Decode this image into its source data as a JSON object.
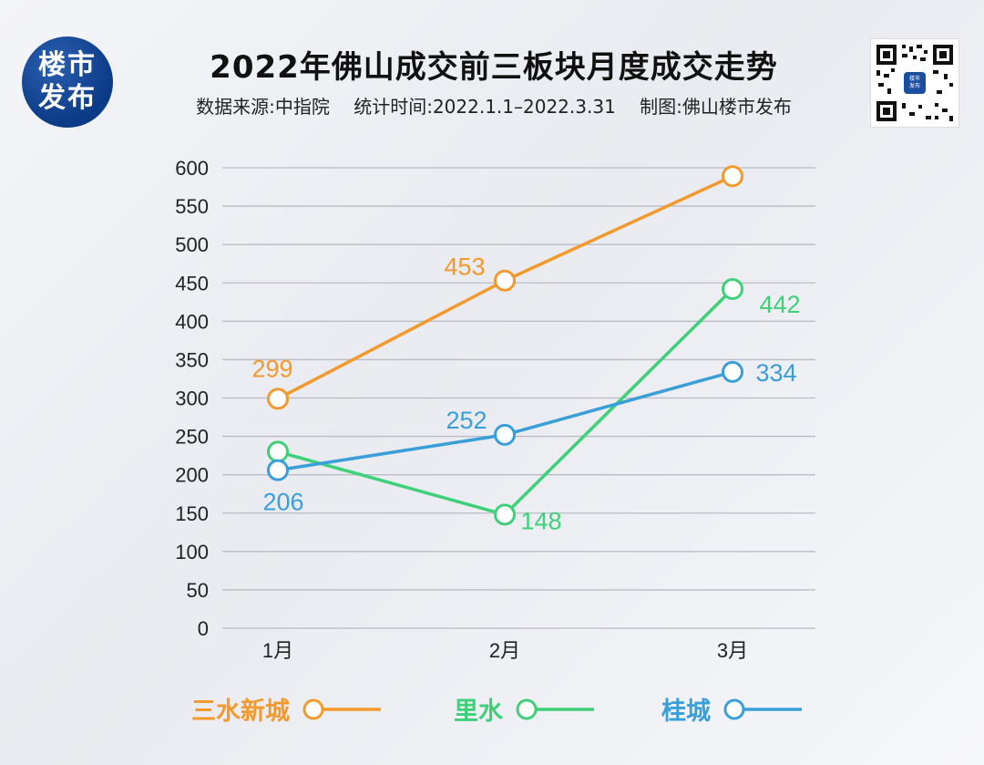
{
  "header": {
    "logo_line1": "楼市",
    "logo_line2": "发布",
    "title": "2022年佛山成交前三板块月度成交走势",
    "source": "数据来源:中指院",
    "period": "统计时间:2022.1.1–2022.3.31",
    "made_by": "制图:佛山楼市发布",
    "qr_label": "楼市\n发布"
  },
  "colors": {
    "三水新城": "#f39a2e",
    "里水": "#3fd07a",
    "桂城": "#3a9fd8",
    "grid": "#b9bcc4",
    "axis_text": "#222"
  },
  "chart_data": {
    "type": "line",
    "categories": [
      "1月",
      "2月",
      "3月"
    ],
    "ylim": [
      0,
      600
    ],
    "yticks": [
      0,
      50,
      100,
      150,
      200,
      250,
      300,
      350,
      400,
      450,
      500,
      550,
      600
    ],
    "grid": true,
    "legend_position": "bottom",
    "series": [
      {
        "name": "三水新城",
        "values": [
          299,
          453,
          589
        ],
        "labels": [
          "299",
          "453",
          ""
        ]
      },
      {
        "name": "里水",
        "values": [
          230,
          148,
          442
        ],
        "labels": [
          "",
          "148",
          "442"
        ]
      },
      {
        "name": "桂城",
        "values": [
          206,
          252,
          334
        ],
        "labels": [
          "206",
          "252",
          "334"
        ]
      }
    ]
  }
}
